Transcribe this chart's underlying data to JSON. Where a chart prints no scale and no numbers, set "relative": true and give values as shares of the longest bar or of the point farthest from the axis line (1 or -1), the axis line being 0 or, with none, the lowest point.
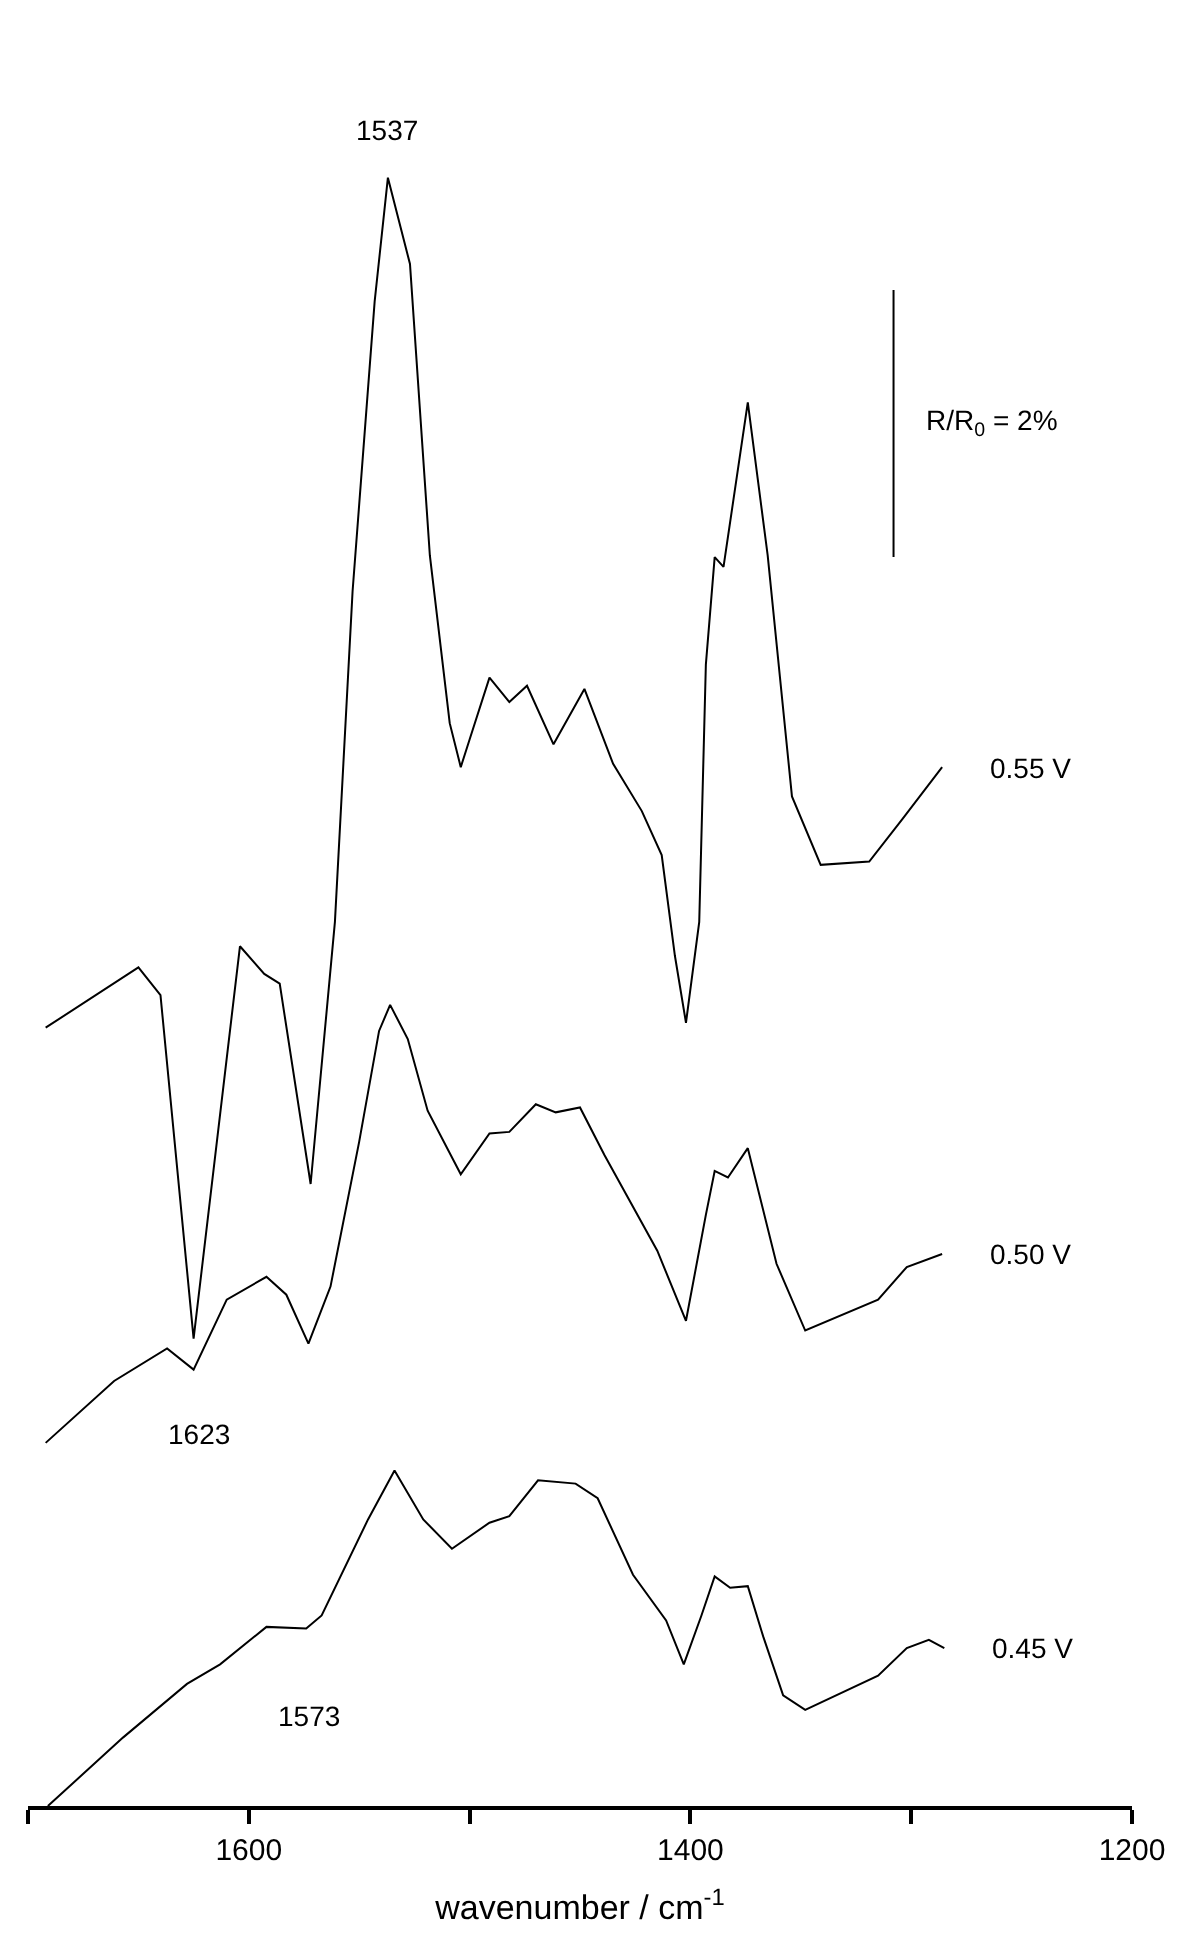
{
  "chart_data": {
    "type": "line",
    "relative": true,
    "xlabel": "wavenumber / cm$^{-1}$",
    "xlim": [
      1700,
      1200
    ],
    "xticks": [
      {
        "value": 1700,
        "label": null
      },
      1600,
      {
        "value": 1500,
        "label": null
      },
      1400,
      {
        "value": 1300,
        "label": null
      },
      1200
    ],
    "legend": false,
    "marker": "none",
    "line_style": "solid",
    "series": [
      {
        "name": "0.55 V",
        "color": "#000000",
        "x": [
          1692,
          1650,
          1640,
          1625,
          1604,
          1593,
          1586,
          1572,
          1561,
          1553,
          1543,
          1537,
          1527,
          1518,
          1509,
          1504,
          1500,
          1491,
          1482,
          1474,
          1462,
          1448,
          1435,
          1422,
          1413,
          1407,
          1402,
          1396,
          1393,
          1389,
          1385,
          1374,
          1365,
          1354,
          1341,
          1319,
          1304,
          1286
        ],
        "values": [
          0.478,
          0.515,
          0.498,
          0.287,
          0.528,
          0.511,
          0.505,
          0.382,
          0.543,
          0.746,
          0.924,
          1.0,
          0.947,
          0.768,
          0.665,
          0.638,
          0.655,
          0.693,
          0.678,
          0.688,
          0.652,
          0.686,
          0.64,
          0.611,
          0.584,
          0.522,
          0.481,
          0.543,
          0.701,
          0.767,
          0.761,
          0.862,
          0.768,
          0.62,
          0.578,
          0.58,
          0.606,
          0.638
        ]
      },
      {
        "name": "0.50 V",
        "color": "#000000",
        "x": [
          1692,
          1661,
          1637,
          1625,
          1610,
          1592,
          1583,
          1573,
          1563,
          1550,
          1541,
          1536,
          1528,
          1519,
          1504,
          1491,
          1482,
          1470,
          1461,
          1450,
          1439,
          1415,
          1402,
          1393,
          1389,
          1383,
          1374,
          1361,
          1348,
          1315,
          1302,
          1286
        ],
        "values": [
          0.223,
          0.261,
          0.281,
          0.268,
          0.311,
          0.325,
          0.314,
          0.284,
          0.319,
          0.408,
          0.476,
          0.492,
          0.471,
          0.427,
          0.388,
          0.413,
          0.414,
          0.431,
          0.426,
          0.429,
          0.4,
          0.341,
          0.298,
          0.363,
          0.39,
          0.386,
          0.404,
          0.333,
          0.292,
          0.311,
          0.331,
          0.339
        ]
      },
      {
        "name": "0.45 V",
        "color": "#000000",
        "x": [
          1691,
          1657,
          1628,
          1613,
          1592,
          1574,
          1567,
          1546,
          1534,
          1521,
          1508,
          1491,
          1482,
          1469,
          1452,
          1442,
          1426,
          1411,
          1403,
          1395,
          1389,
          1382,
          1374,
          1367,
          1358,
          1348,
          1315,
          1302,
          1292,
          1285
        ],
        "values": [
          0.0,
          0.042,
          0.075,
          0.087,
          0.11,
          0.109,
          0.117,
          0.176,
          0.206,
          0.176,
          0.158,
          0.174,
          0.178,
          0.2,
          0.198,
          0.189,
          0.142,
          0.114,
          0.087,
          0.117,
          0.141,
          0.134,
          0.135,
          0.104,
          0.068,
          0.059,
          0.08,
          0.097,
          0.102,
          0.097
        ]
      },
      {
        "type": "line",
        "color": "#000000",
        "x": [
          1308,
          1308
        ],
        "values": [
          0.767,
          0.931
        ]
      }
    ],
    "annotations": [
      {
        "text": "1537",
        "x": 1537,
        "y": 1.0
      },
      {
        "text": "1623",
        "x": 1623,
        "y": 0.268
      },
      {
        "text": "1573",
        "x": 1573,
        "y": 0.109
      },
      {
        "text": "R/R$_{0}$ = 2%",
        "x": 1308,
        "y": 0.849
      }
    ]
  }
}
